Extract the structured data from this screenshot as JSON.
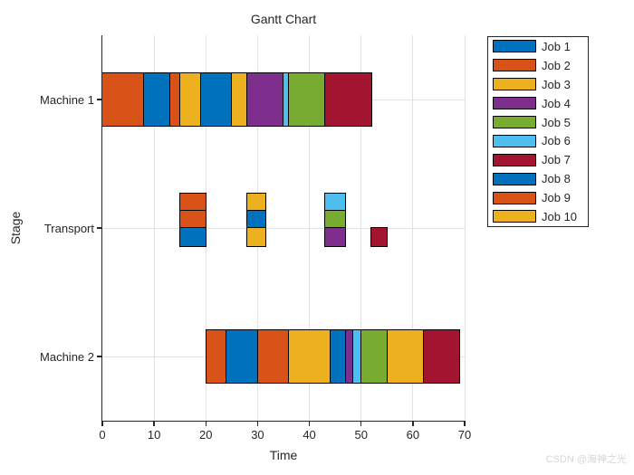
{
  "title": "Gantt Chart",
  "xlabel": "Time",
  "ylabel": "Stage",
  "watermark": "CSDN @海神之光",
  "chart_data": {
    "type": "bar",
    "variant": "gantt-schedule",
    "title": "Gantt Chart",
    "xlabel": "Time",
    "ylabel": "Stage",
    "xlim": [
      0,
      70
    ],
    "x_ticks": [
      0,
      10,
      20,
      30,
      40,
      50,
      60,
      70
    ],
    "grid": "on",
    "stages": [
      "Machine 1",
      "Transport",
      "Machine 2"
    ],
    "palette": {
      "blue": "#0072BD",
      "orange": "#D95319",
      "yellow": "#EDB120",
      "purple": "#7E2F8E",
      "green": "#77AC30",
      "lightblue": "#4DBEEE",
      "darkred": "#A2142F"
    },
    "legend": {
      "position": "outside-right",
      "entries": [
        {
          "label": "Job 1",
          "color": "blue"
        },
        {
          "label": "Job 2",
          "color": "orange"
        },
        {
          "label": "Job 3",
          "color": "yellow"
        },
        {
          "label": "Job 4",
          "color": "purple"
        },
        {
          "label": "Job 5",
          "color": "green"
        },
        {
          "label": "Job 6",
          "color": "lightblue"
        },
        {
          "label": "Job 7",
          "color": "darkred"
        },
        {
          "label": "Job 8",
          "color": "blue"
        },
        {
          "label": "Job 9",
          "color": "orange"
        },
        {
          "label": "Job 10",
          "color": "yellow"
        }
      ]
    },
    "bars": [
      {
        "stage": "Machine 1",
        "lane": "full",
        "start": 0,
        "end": 8,
        "color": "orange"
      },
      {
        "stage": "Machine 1",
        "lane": "full",
        "start": 8,
        "end": 13,
        "color": "blue"
      },
      {
        "stage": "Machine 1",
        "lane": "full",
        "start": 13,
        "end": 15,
        "color": "orange"
      },
      {
        "stage": "Machine 1",
        "lane": "full",
        "start": 15,
        "end": 19,
        "color": "yellow"
      },
      {
        "stage": "Machine 1",
        "lane": "full",
        "start": 19,
        "end": 25,
        "color": "blue"
      },
      {
        "stage": "Machine 1",
        "lane": "full",
        "start": 25,
        "end": 28,
        "color": "yellow"
      },
      {
        "stage": "Machine 1",
        "lane": "full",
        "start": 28,
        "end": 35,
        "color": "purple"
      },
      {
        "stage": "Machine 1",
        "lane": "full",
        "start": 35,
        "end": 36,
        "color": "lightblue"
      },
      {
        "stage": "Machine 1",
        "lane": "full",
        "start": 36,
        "end": 43,
        "color": "green"
      },
      {
        "stage": "Machine 1",
        "lane": "full",
        "start": 43,
        "end": 52,
        "color": "darkred"
      },
      {
        "stage": "Transport",
        "lane": "top",
        "start": 15,
        "end": 20,
        "color": "orange"
      },
      {
        "stage": "Transport",
        "lane": "mid",
        "start": 15,
        "end": 20,
        "color": "orange"
      },
      {
        "stage": "Transport",
        "lane": "bottom",
        "start": 15,
        "end": 20,
        "color": "blue"
      },
      {
        "stage": "Transport",
        "lane": "top",
        "start": 28,
        "end": 31.5,
        "color": "yellow"
      },
      {
        "stage": "Transport",
        "lane": "mid",
        "start": 28,
        "end": 31.5,
        "color": "blue"
      },
      {
        "stage": "Transport",
        "lane": "bottom",
        "start": 28,
        "end": 31.5,
        "color": "yellow"
      },
      {
        "stage": "Transport",
        "lane": "top",
        "start": 43,
        "end": 47,
        "color": "lightblue"
      },
      {
        "stage": "Transport",
        "lane": "mid",
        "start": 43,
        "end": 47,
        "color": "green"
      },
      {
        "stage": "Transport",
        "lane": "bottom",
        "start": 43,
        "end": 47,
        "color": "purple"
      },
      {
        "stage": "Transport",
        "lane": "bottom",
        "start": 52,
        "end": 55,
        "color": "darkred"
      },
      {
        "stage": "Machine 2",
        "lane": "full",
        "start": 20,
        "end": 24,
        "color": "orange"
      },
      {
        "stage": "Machine 2",
        "lane": "full",
        "start": 24,
        "end": 30,
        "color": "blue"
      },
      {
        "stage": "Machine 2",
        "lane": "full",
        "start": 30,
        "end": 36,
        "color": "orange"
      },
      {
        "stage": "Machine 2",
        "lane": "full",
        "start": 36,
        "end": 44,
        "color": "yellow"
      },
      {
        "stage": "Machine 2",
        "lane": "full",
        "start": 44,
        "end": 47,
        "color": "blue"
      },
      {
        "stage": "Machine 2",
        "lane": "full",
        "start": 47,
        "end": 48.5,
        "color": "purple"
      },
      {
        "stage": "Machine 2",
        "lane": "full",
        "start": 48.5,
        "end": 50,
        "color": "lightblue"
      },
      {
        "stage": "Machine 2",
        "lane": "full",
        "start": 50,
        "end": 55,
        "color": "green"
      },
      {
        "stage": "Machine 2",
        "lane": "full",
        "start": 55,
        "end": 62,
        "color": "yellow"
      },
      {
        "stage": "Machine 2",
        "lane": "full",
        "start": 62,
        "end": 69,
        "color": "darkred"
      }
    ]
  }
}
